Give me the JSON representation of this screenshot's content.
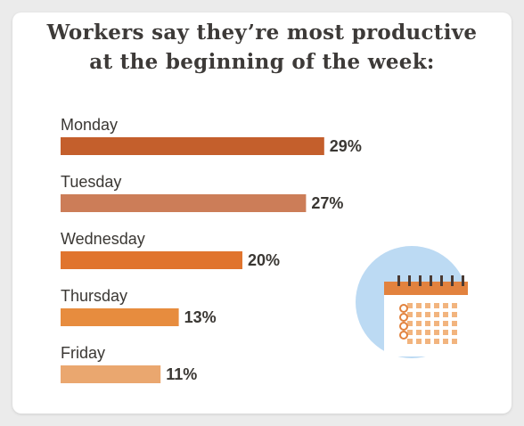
{
  "title_lines": [
    "Workers say they’re most productive",
    "at the beginning of the week:"
  ],
  "chart_data": {
    "type": "bar",
    "orientation": "horizontal",
    "title": "Workers say they’re most productive at the beginning of the week:",
    "categories": [
      "Monday",
      "Tuesday",
      "Wednesday",
      "Thursday",
      "Friday"
    ],
    "values": [
      29,
      27,
      20,
      13,
      11
    ],
    "value_labels": [
      "29%",
      "27%",
      "20%",
      "13%",
      "11%"
    ],
    "unit": "%",
    "colors": [
      "#c45f2c",
      "#cc7d58",
      "#e0742e",
      "#e78c3e",
      "#eaa76f"
    ],
    "grid": false,
    "legend": "none"
  },
  "icon": "calendar-icon"
}
